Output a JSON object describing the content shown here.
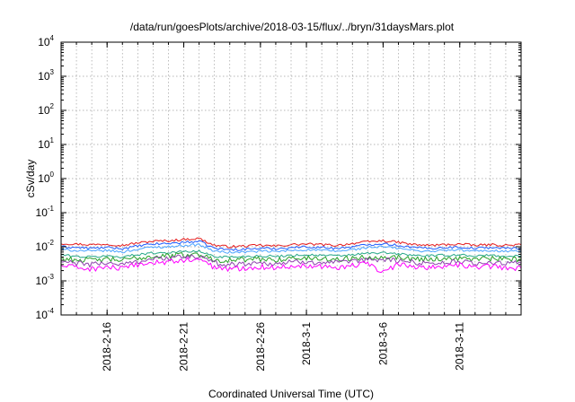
{
  "chart_data": {
    "type": "line",
    "title": "/data/run/goesPlots/archive/2018-03-15/flux/../bryn/31daysMars.plot",
    "xlabel": "Coordinated Universal Time (UTC)",
    "ylabel": "cSv/day",
    "yscale": "log",
    "ylim": [
      0.0001,
      10000
    ],
    "y_ticks": [
      {
        "base": "10",
        "exp": "-4",
        "value": 0.0001
      },
      {
        "base": "10",
        "exp": "-3",
        "value": 0.001
      },
      {
        "base": "10",
        "exp": "-2",
        "value": 0.01
      },
      {
        "base": "10",
        "exp": "-1",
        "value": 0.1
      },
      {
        "base": "10",
        "exp": "0",
        "value": 1
      },
      {
        "base": "10",
        "exp": "1",
        "value": 10
      },
      {
        "base": "10",
        "exp": "2",
        "value": 100
      },
      {
        "base": "10",
        "exp": "3",
        "value": 1000
      },
      {
        "base": "10",
        "exp": "4",
        "value": 10000
      }
    ],
    "xlim": [
      "2018-02-13",
      "2018-03-15"
    ],
    "x_ticks": [
      "2018-2-16",
      "2018-2-21",
      "2018-2-26",
      "2018-3-1",
      "2018-3-6",
      "2018-3-11"
    ],
    "x_tick_dates": [
      "2018-02-16",
      "2018-02-21",
      "2018-02-26",
      "2018-03-01",
      "2018-03-06",
      "2018-03-11"
    ],
    "grid": true,
    "x_dates": [
      "2018-02-13",
      "2018-02-14",
      "2018-02-15",
      "2018-02-16",
      "2018-02-17",
      "2018-02-18",
      "2018-02-19",
      "2018-02-20",
      "2018-02-21",
      "2018-02-22",
      "2018-02-23",
      "2018-02-24",
      "2018-02-25",
      "2018-02-26",
      "2018-02-27",
      "2018-02-28",
      "2018-03-01",
      "2018-03-02",
      "2018-03-03",
      "2018-03-04",
      "2018-03-05",
      "2018-03-06",
      "2018-03-07",
      "2018-03-08",
      "2018-03-09",
      "2018-03-10",
      "2018-03-11",
      "2018-03-12",
      "2018-03-13",
      "2018-03-14",
      "2018-03-15"
    ],
    "series": [
      {
        "color": "#e41a1c",
        "values": [
          0.0125,
          0.012,
          0.0115,
          0.012,
          0.011,
          0.013,
          0.0145,
          0.015,
          0.0165,
          0.0175,
          0.011,
          0.01,
          0.0105,
          0.011,
          0.0105,
          0.0115,
          0.012,
          0.0115,
          0.011,
          0.0125,
          0.014,
          0.015,
          0.0135,
          0.0115,
          0.011,
          0.0115,
          0.012,
          0.011,
          0.0115,
          0.011,
          0.0115
        ]
      },
      {
        "color": "#1f5cff",
        "values": [
          0.01,
          0.0095,
          0.009,
          0.0095,
          0.0088,
          0.0105,
          0.012,
          0.0125,
          0.0135,
          0.0145,
          0.009,
          0.0082,
          0.0085,
          0.009,
          0.0088,
          0.0095,
          0.01,
          0.0095,
          0.009,
          0.01,
          0.0115,
          0.0125,
          0.011,
          0.0095,
          0.009,
          0.0095,
          0.0098,
          0.009,
          0.0095,
          0.009,
          0.0092
        ]
      },
      {
        "color": "#4aa3ff",
        "values": [
          0.0082,
          0.0078,
          0.0074,
          0.0078,
          0.007,
          0.0085,
          0.0098,
          0.01,
          0.011,
          0.0115,
          0.0074,
          0.0068,
          0.007,
          0.0074,
          0.0072,
          0.0078,
          0.0082,
          0.0078,
          0.0074,
          0.0082,
          0.0095,
          0.01,
          0.009,
          0.0078,
          0.0074,
          0.0078,
          0.008,
          0.0074,
          0.0078,
          0.0074,
          0.0075
        ]
      },
      {
        "color": "#27a889",
        "values": [
          0.0058,
          0.0052,
          0.005,
          0.0054,
          0.005,
          0.006,
          0.0066,
          0.0068,
          0.0072,
          0.0074,
          0.0052,
          0.005,
          0.0052,
          0.0054,
          0.0052,
          0.0056,
          0.0058,
          0.0056,
          0.0054,
          0.0058,
          0.0064,
          0.0066,
          0.0062,
          0.0056,
          0.0054,
          0.0056,
          0.0058,
          0.0054,
          0.0056,
          0.0052,
          0.0054
        ]
      },
      {
        "color": "#2aa02a",
        "values": [
          0.0045,
          0.0042,
          0.004,
          0.0043,
          0.004,
          0.0047,
          0.0052,
          0.0054,
          0.0058,
          0.006,
          0.0042,
          0.004,
          0.0042,
          0.0043,
          0.0042,
          0.0045,
          0.0046,
          0.0045,
          0.0043,
          0.0046,
          0.005,
          0.0052,
          0.0049,
          0.0045,
          0.0043,
          0.0045,
          0.0046,
          0.0043,
          0.0045,
          0.0042,
          0.0043
        ]
      },
      {
        "color": "#8e44ad",
        "values": [
          0.0036,
          0.0033,
          0.003,
          0.0034,
          0.003,
          0.0038,
          0.0044,
          0.0046,
          0.005,
          0.0052,
          0.0033,
          0.003,
          0.0032,
          0.0034,
          0.0032,
          0.0035,
          0.0037,
          0.0035,
          0.0033,
          0.0036,
          0.0041,
          0.0043,
          0.0039,
          0.0035,
          0.0033,
          0.0035,
          0.0036,
          0.0033,
          0.0035,
          0.0032,
          0.0033
        ]
      },
      {
        "color": "#ff00ff",
        "values": [
          0.0028,
          0.0025,
          0.0022,
          0.0026,
          0.0022,
          0.003,
          0.0034,
          0.0036,
          0.004,
          0.0042,
          0.0025,
          0.0022,
          0.0024,
          0.0026,
          0.0024,
          0.0027,
          0.0029,
          0.0027,
          0.0025,
          0.0028,
          0.0032,
          0.0018,
          0.003,
          0.0027,
          0.0025,
          0.0027,
          0.0028,
          0.0025,
          0.0027,
          0.0024,
          0.0024
        ]
      }
    ]
  }
}
